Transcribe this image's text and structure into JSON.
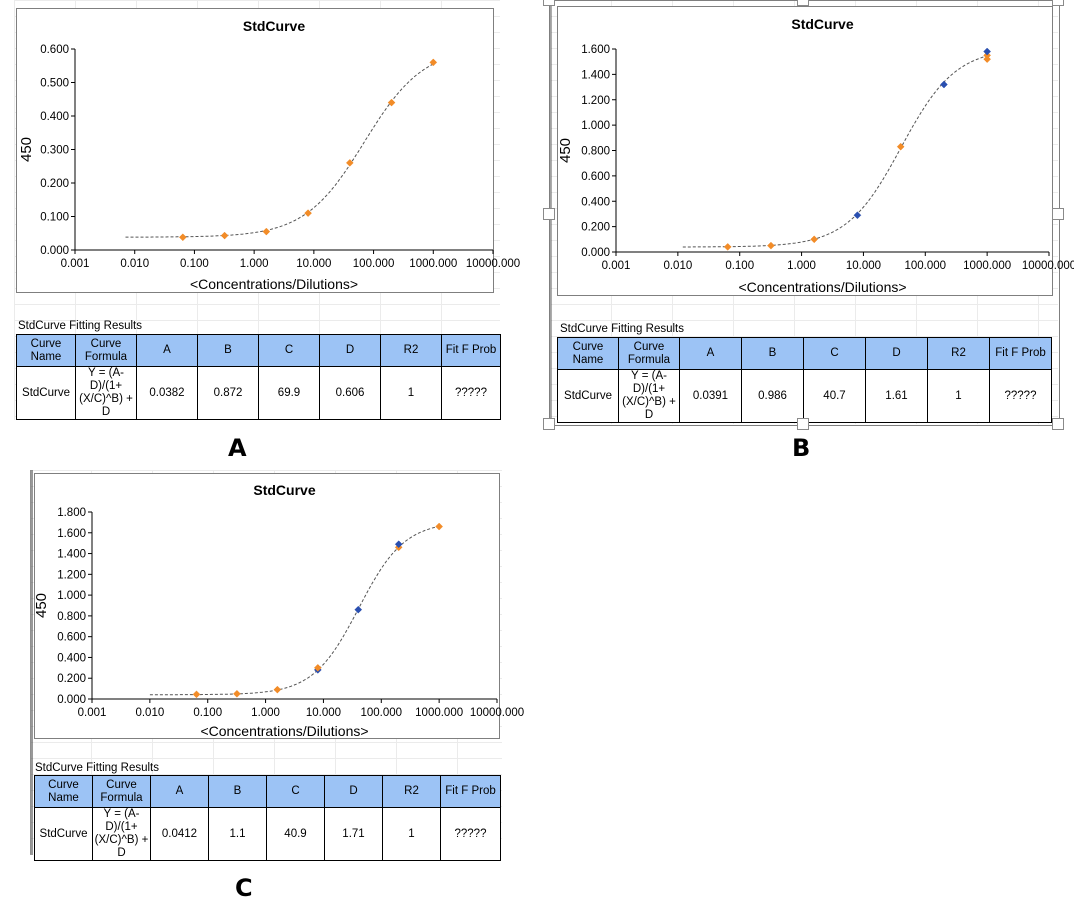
{
  "panels": [
    {
      "letter": "A",
      "chart_data": {
        "type": "scatter",
        "title": "StdCurve",
        "xlabel": "<Concentrations/Dilutions>",
        "ylabel": "450",
        "xscale": "log",
        "xlim": [
          0.001,
          10000
        ],
        "ylim": [
          0,
          0.6
        ],
        "x_ticks": [
          "0.001",
          "0.010",
          "0.100",
          "1.000",
          "10.000",
          "100.000",
          "1000.000",
          "10000.000"
        ],
        "y_ticks": [
          "0.000",
          "0.100",
          "0.200",
          "0.300",
          "0.400",
          "0.500",
          "0.600"
        ],
        "points": [
          {
            "x": 0.064,
            "y": 0.038
          },
          {
            "x": 0.32,
            "y": 0.043
          },
          {
            "x": 1.6,
            "y": 0.055
          },
          {
            "x": 8,
            "y": 0.11
          },
          {
            "x": 40,
            "y": 0.26
          },
          {
            "x": 200,
            "y": 0.44
          },
          {
            "x": 1000,
            "y": 0.56
          }
        ],
        "fit": {
          "A": 0.0382,
          "B": 0.872,
          "C": 69.9,
          "D": 0.606,
          "xmin": 0.007,
          "xmax": 1000
        },
        "marker_color": "#f28c28",
        "fit_line_color": "#555555",
        "grid": false
      },
      "results": {
        "title": "StdCurve Fitting Results",
        "headers": [
          "Curve Name",
          "Curve Formula",
          "A",
          "B",
          "C",
          "D",
          "R2",
          "Fit F Prob"
        ],
        "row": [
          "StdCurve",
          "Y = (A-D)/(1+(X/C)^B) + D",
          "0.0382",
          "0.872",
          "69.9",
          "0.606",
          "1",
          "?????"
        ]
      }
    },
    {
      "letter": "B",
      "chart_data": {
        "type": "scatter",
        "title": "StdCurve",
        "xlabel": "<Concentrations/Dilutions>",
        "ylabel": "450",
        "xscale": "log",
        "xlim": [
          0.001,
          10000
        ],
        "ylim": [
          0,
          1.6
        ],
        "x_ticks": [
          "0.001",
          "0.010",
          "0.100",
          "1.000",
          "10.000",
          "100.000",
          "1000.000",
          "10000.000"
        ],
        "y_ticks": [
          "0.000",
          "0.200",
          "0.400",
          "0.600",
          "0.800",
          "1.000",
          "1.200",
          "1.400",
          "1.600"
        ],
        "points": [
          {
            "x": 0.064,
            "y": 0.04
          },
          {
            "x": 0.32,
            "y": 0.05
          },
          {
            "x": 1.6,
            "y": 0.1
          },
          {
            "x": 8,
            "y": 0.29
          },
          {
            "x": 40,
            "y": 0.83
          },
          {
            "x": 200,
            "y": 1.32
          },
          {
            "x": 1000,
            "y": 1.55
          },
          {
            "x": 1000,
            "y": 1.58
          },
          {
            "x": 1000,
            "y": 1.52
          }
        ],
        "fit": {
          "A": 0.0391,
          "B": 0.986,
          "C": 40.7,
          "D": 1.61,
          "xmin": 0.012,
          "xmax": 1000
        },
        "marker_color": "#f28c28",
        "marker_color_alt": "#2a4fb0",
        "fit_line_color": "#555555",
        "grid": false
      },
      "results": {
        "title": "StdCurve Fitting Results",
        "headers": [
          "Curve Name",
          "Curve Formula",
          "A",
          "B",
          "C",
          "D",
          "R2",
          "Fit F Prob"
        ],
        "row": [
          "StdCurve",
          "Y = (A-D)/(1+(X/C)^B) + D",
          "0.0391",
          "0.986",
          "40.7",
          "1.61",
          "1",
          "?????"
        ]
      }
    },
    {
      "letter": "C",
      "chart_data": {
        "type": "scatter",
        "title": "StdCurve",
        "xlabel": "<Concentrations/Dilutions>",
        "ylabel": "450",
        "xscale": "log",
        "xlim": [
          0.001,
          10000
        ],
        "ylim": [
          0,
          1.8
        ],
        "x_ticks": [
          "0.001",
          "0.010",
          "0.100",
          "1.000",
          "10.000",
          "100.000",
          "1000.000",
          "10000.000"
        ],
        "y_ticks": [
          "0.000",
          "0.200",
          "0.400",
          "0.600",
          "0.800",
          "1.000",
          "1.200",
          "1.400",
          "1.600",
          "1.800"
        ],
        "points": [
          {
            "x": 0.064,
            "y": 0.045
          },
          {
            "x": 0.32,
            "y": 0.05
          },
          {
            "x": 1.6,
            "y": 0.09
          },
          {
            "x": 8,
            "y": 0.28
          },
          {
            "x": 8,
            "y": 0.3
          },
          {
            "x": 40,
            "y": 0.86
          },
          {
            "x": 200,
            "y": 1.46
          },
          {
            "x": 200,
            "y": 1.49
          },
          {
            "x": 1000,
            "y": 1.66
          }
        ],
        "fit": {
          "A": 0.0412,
          "B": 1.1,
          "C": 40.9,
          "D": 1.71,
          "xmin": 0.01,
          "xmax": 1000
        },
        "marker_color": "#f28c28",
        "marker_color_alt": "#2a4fb0",
        "fit_line_color": "#555555",
        "grid": false
      },
      "results": {
        "title": "StdCurve Fitting Results",
        "headers": [
          "Curve Name",
          "Curve Formula",
          "A",
          "B",
          "C",
          "D",
          "R2",
          "Fit F Prob"
        ],
        "row": [
          "StdCurve",
          "Y = (A-D)/(1+(X/C)^B) + D",
          "0.0412",
          "1.1",
          "40.9",
          "1.71",
          "1",
          "?????"
        ]
      }
    }
  ]
}
